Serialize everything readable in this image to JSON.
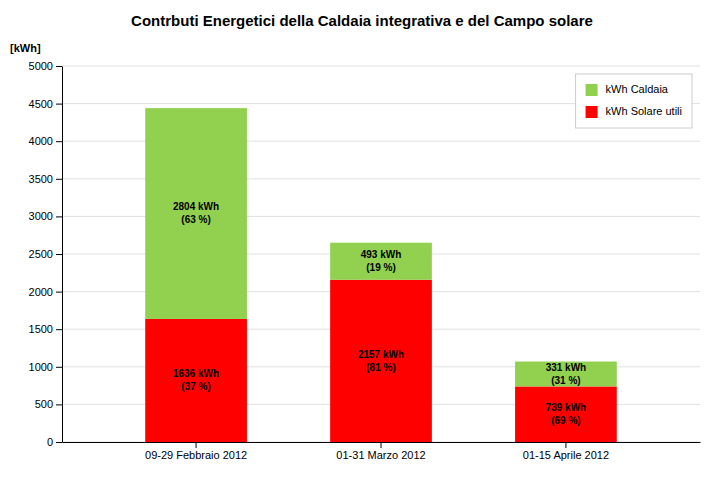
{
  "chart_data": {
    "type": "bar",
    "stacked": true,
    "title": "Contrbuti Energetici della Caldaia integrativa e del Campo solare",
    "y_label": "[kWh]",
    "categories": [
      "09-29 Febbraio 2012",
      "01-31 Marzo 2012",
      "01-15 Aprile 2012"
    ],
    "series": [
      {
        "name": "kWh Solare utili",
        "color": "#FF0000",
        "values": [
          1636,
          2157,
          739
        ],
        "value_labels": [
          "1636 kWh",
          "2157 kWh",
          "739 kWh"
        ],
        "shares": [
          37,
          81,
          69
        ],
        "share_labels": [
          "(37 %)",
          "(81 %)",
          "(69 %)"
        ]
      },
      {
        "name": "kWh Caldaia",
        "color": "#92D050",
        "values": [
          2804,
          493,
          331
        ],
        "value_labels": [
          "2804 kWh",
          "493 kWh",
          "331 kWh"
        ],
        "shares": [
          63,
          19,
          31
        ],
        "share_labels": [
          "(63 %)",
          "(19 %)",
          "(31 %)"
        ]
      }
    ],
    "ylim": [
      0,
      5000
    ],
    "yticks": [
      0,
      500,
      1000,
      1500,
      2000,
      2500,
      3000,
      3500,
      4000,
      4500,
      5000
    ],
    "grid": true,
    "legend": "upper right",
    "data_labels": true
  }
}
